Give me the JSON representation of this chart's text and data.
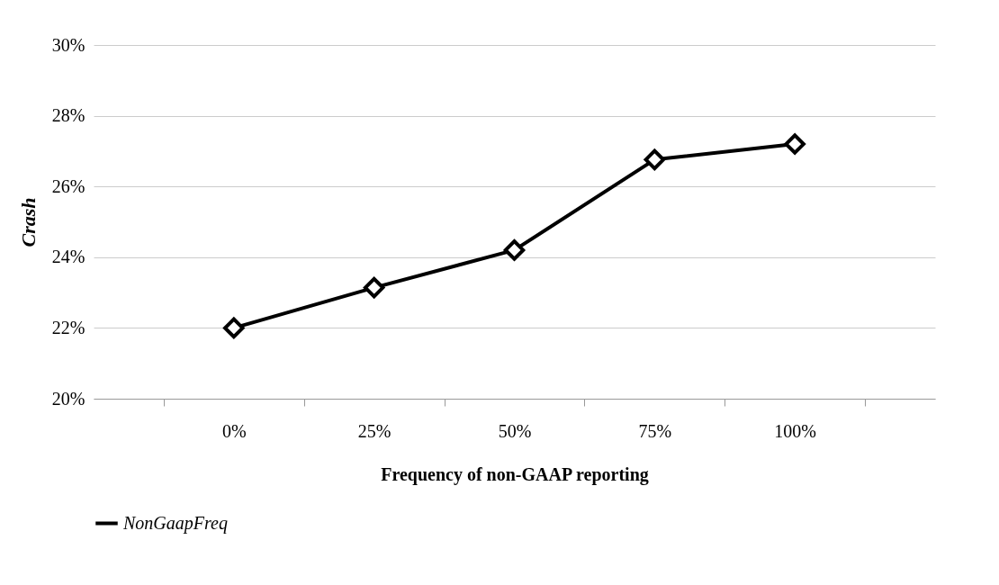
{
  "chart_data": {
    "type": "line",
    "xlabel": "Frequency of non-GAAP reporting",
    "ylabel": "Crash",
    "categories": [
      "0%",
      "25%",
      "50%",
      "75%",
      "100%"
    ],
    "series": [
      {
        "name": "NonGaapFreq",
        "color": "#000000",
        "values": [
          22.0,
          23.14,
          24.2,
          26.76,
          27.2
        ]
      }
    ],
    "ylim": [
      20,
      30
    ],
    "yticks": [
      {
        "value": 20,
        "label": "20%"
      },
      {
        "value": 22,
        "label": "22%"
      },
      {
        "value": 24,
        "label": "24%"
      },
      {
        "value": 26,
        "label": "26%"
      },
      {
        "value": 28,
        "label": "28%"
      },
      {
        "value": 30,
        "label": "30%"
      }
    ],
    "grid": "y",
    "legend": "bottom",
    "marker": "diamond",
    "line_style": "solid"
  }
}
